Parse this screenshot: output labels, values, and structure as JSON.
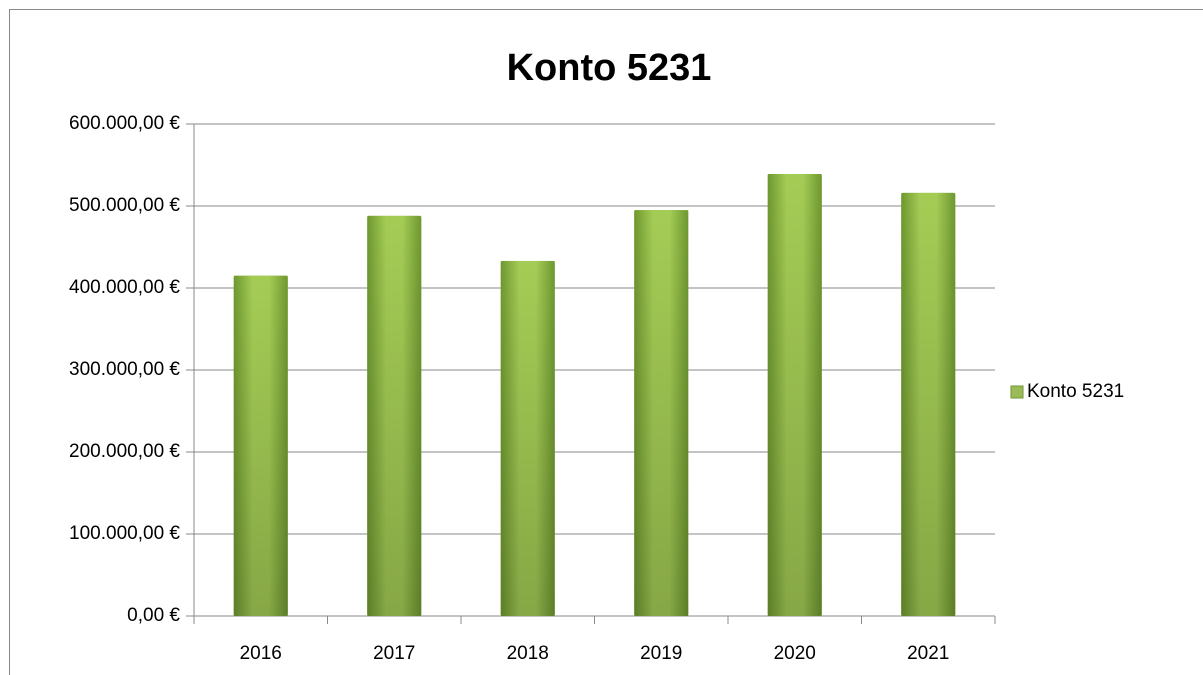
{
  "chart_data": {
    "type": "bar",
    "title": "Konto 5231",
    "categories": [
      "2016",
      "2017",
      "2018",
      "2019",
      "2020",
      "2021"
    ],
    "series": [
      {
        "name": "Konto 5231",
        "color": "#9bbb59",
        "values": [
          415000,
          488000,
          433000,
          495000,
          539000,
          516000
        ]
      }
    ],
    "ylim": [
      0,
      600000
    ],
    "yticks": [
      {
        "value": 0,
        "label": "0,00 €"
      },
      {
        "value": 100000,
        "label": "100.000,00 €"
      },
      {
        "value": 200000,
        "label": "200.000,00 €"
      },
      {
        "value": 300000,
        "label": "300.000,00 €"
      },
      {
        "value": 400000,
        "label": "400.000,00 €"
      },
      {
        "value": 500000,
        "label": "500.000,00 €"
      },
      {
        "value": 600000,
        "label": "600.000,00 €"
      }
    ],
    "grid": true,
    "legend": "right"
  }
}
